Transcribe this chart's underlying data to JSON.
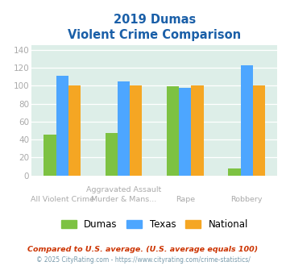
{
  "title_line1": "2019 Dumas",
  "title_line2": "Violent Crime Comparison",
  "cat_labels_top": [
    "",
    "Aggravated Assault",
    "",
    ""
  ],
  "cat_labels_bot": [
    "All Violent Crime",
    "Murder & Mans...",
    "Rape",
    "Robbery"
  ],
  "dumas": [
    46,
    47,
    99,
    8
  ],
  "texas": [
    111,
    105,
    98,
    123
  ],
  "national": [
    100,
    100,
    100,
    100
  ],
  "bar_colors": {
    "dumas": "#7dc242",
    "texas": "#4da6ff",
    "national": "#f5a623"
  },
  "ylim": [
    0,
    145
  ],
  "yticks": [
    0,
    20,
    40,
    60,
    80,
    100,
    120,
    140
  ],
  "plot_bg": "#ddeee8",
  "legend_labels": [
    "Dumas",
    "Texas",
    "National"
  ],
  "footnote1": "Compared to U.S. average. (U.S. average equals 100)",
  "footnote2": "© 2025 CityRating.com - https://www.cityrating.com/crime-statistics/",
  "title_color": "#1a5fa8",
  "footnote1_color": "#cc3300",
  "footnote2_color": "#7799aa",
  "tick_color": "#aaaaaa"
}
